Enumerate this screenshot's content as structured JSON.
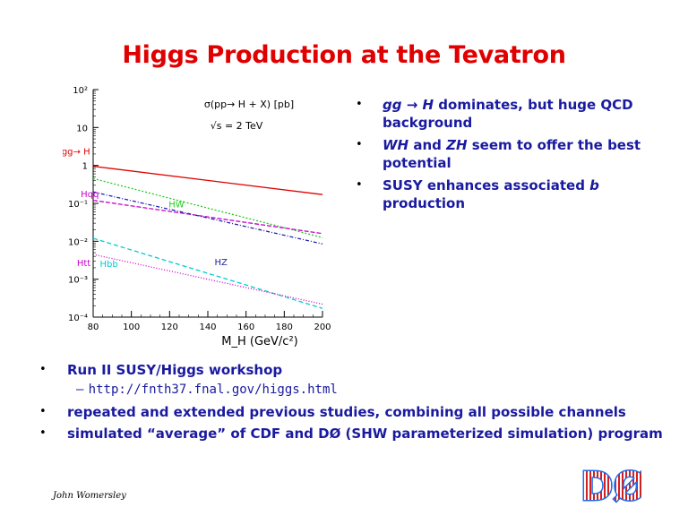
{
  "title": "Higgs Production at the Tevatron",
  "right_bullets": [
    {
      "pre": "",
      "it1": "gg",
      "mid1": " ",
      "arrow": "→",
      "it2": " H",
      "rest": " dominates, but huge QCD background"
    },
    {
      "pre": "",
      "it1": "WH",
      "mid1": " and ",
      "arrow": "",
      "it2": "ZH",
      "rest": " seem to offer the best potential"
    },
    {
      "pre": "SUSY enhances associated ",
      "it1": "b",
      "mid1": "",
      "arrow": "",
      "it2": "",
      "rest": ""
    },
    {
      "cont": "production"
    }
  ],
  "bottom_bullets": [
    {
      "text": "Run II SUSY/Higgs workshop",
      "sub_dash": "–",
      "sub_url": "http://fnth37.fnal.gov/higgs.html"
    },
    {
      "text": "repeated and extended previous studies, combining all possible channels"
    },
    {
      "text": "simulated “average” of CDF and DØ (SHW parameterized simulation) program"
    }
  ],
  "footer": {
    "author": "John Womersley"
  },
  "logo": {
    "letters": "DØ",
    "colors": {
      "fill": "#ffffff",
      "outline": "#1e6cf0",
      "pattern": "#d02020"
    }
  },
  "chart_data": {
    "type": "line",
    "title": "σ(pp→ H + X) [pb]",
    "subtitle": "√s = 2 TeV",
    "xlabel": "M_H (GeV/c²)",
    "ylabel": "",
    "xlim": [
      80,
      200
    ],
    "ylim_log10": [
      -4,
      2
    ],
    "x_ticks": [
      "80",
      "100",
      "120",
      "140",
      "160",
      "180",
      "200"
    ],
    "y_ticks": [
      "10²",
      "10",
      "1",
      "10⁻¹",
      "10⁻²",
      "10⁻³",
      "10⁻⁴"
    ],
    "x": [
      80,
      200
    ],
    "series": [
      {
        "name": "gg→ H",
        "color": "#e00000",
        "dash": "",
        "values": [
          0.95,
          0.17
        ]
      },
      {
        "name": "HW",
        "color": "#22cc22",
        "dash": "2,2",
        "values": [
          0.45,
          0.0125
        ]
      },
      {
        "name": "Hqq",
        "color": "#cc00cc",
        "dash": "5,2",
        "values": [
          0.12,
          0.016
        ]
      },
      {
        "name": "HZ",
        "color": "#2222aa",
        "dash": "4,2,1,2",
        "values": [
          0.2,
          0.0085
        ]
      },
      {
        "name": "Hbb",
        "color": "#00cccc",
        "dash": "5,3",
        "values": [
          0.012,
          0.00017
        ]
      },
      {
        "name": "Htt",
        "color": "#cc00cc",
        "dash": "1,2",
        "values": [
          0.0045,
          0.00022
        ]
      }
    ],
    "curve_labels": [
      "gg→ H",
      "HW",
      "Hqq",
      "HZ",
      "Hbb",
      "Htt"
    ]
  }
}
